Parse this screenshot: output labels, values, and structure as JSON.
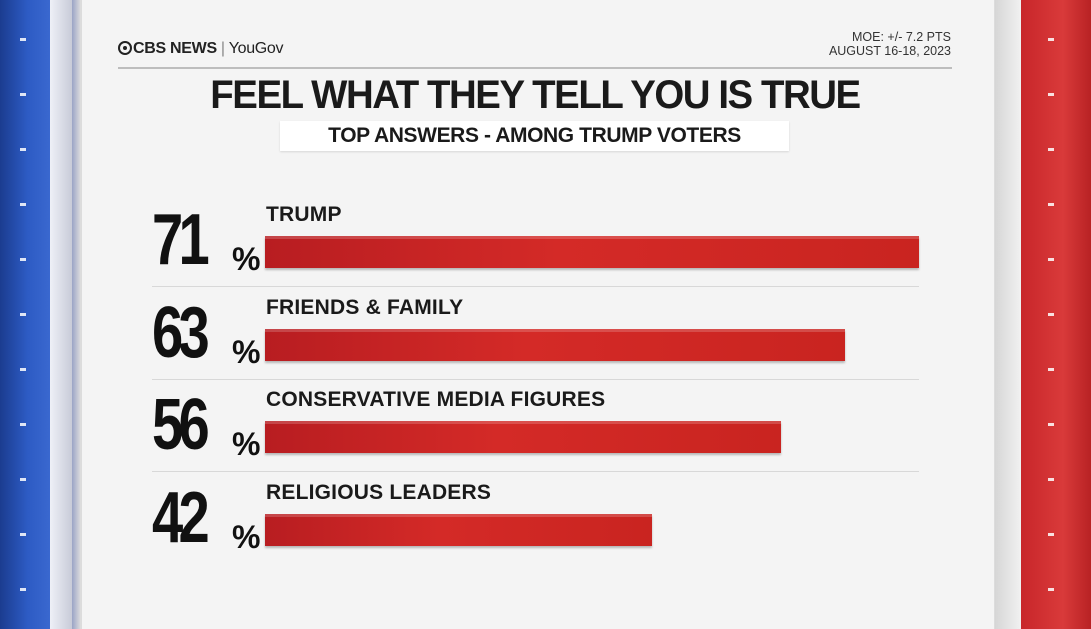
{
  "brand": {
    "network": "CBS NEWS",
    "partner": "YouGov"
  },
  "moe": {
    "line1": "MOE: +/- 7.2 PTS",
    "line2": "AUGUST 16-18, 2023"
  },
  "chart_data": {
    "type": "bar",
    "orientation": "horizontal",
    "title": "FEEL WHAT THEY TELL YOU IS TRUE",
    "subtitle": "TOP ANSWERS - AMONG TRUMP VOTERS",
    "categories": [
      "TRUMP",
      "FRIENDS & FAMILY",
      "CONSERVATIVE MEDIA FIGURES",
      "RELIGIOUS LEADERS"
    ],
    "values": [
      71,
      63,
      56,
      42
    ],
    "value_labels": [
      "71",
      "63",
      "56",
      "42"
    ],
    "unit": "%",
    "xlim": [
      0,
      71
    ],
    "grid": false,
    "legend": "none",
    "bar_color": "#d42a27"
  },
  "colors": {
    "left_stripe": "#2d5bc4",
    "right_stripe": "#d93a3a",
    "panel": "#f4f4f4"
  }
}
